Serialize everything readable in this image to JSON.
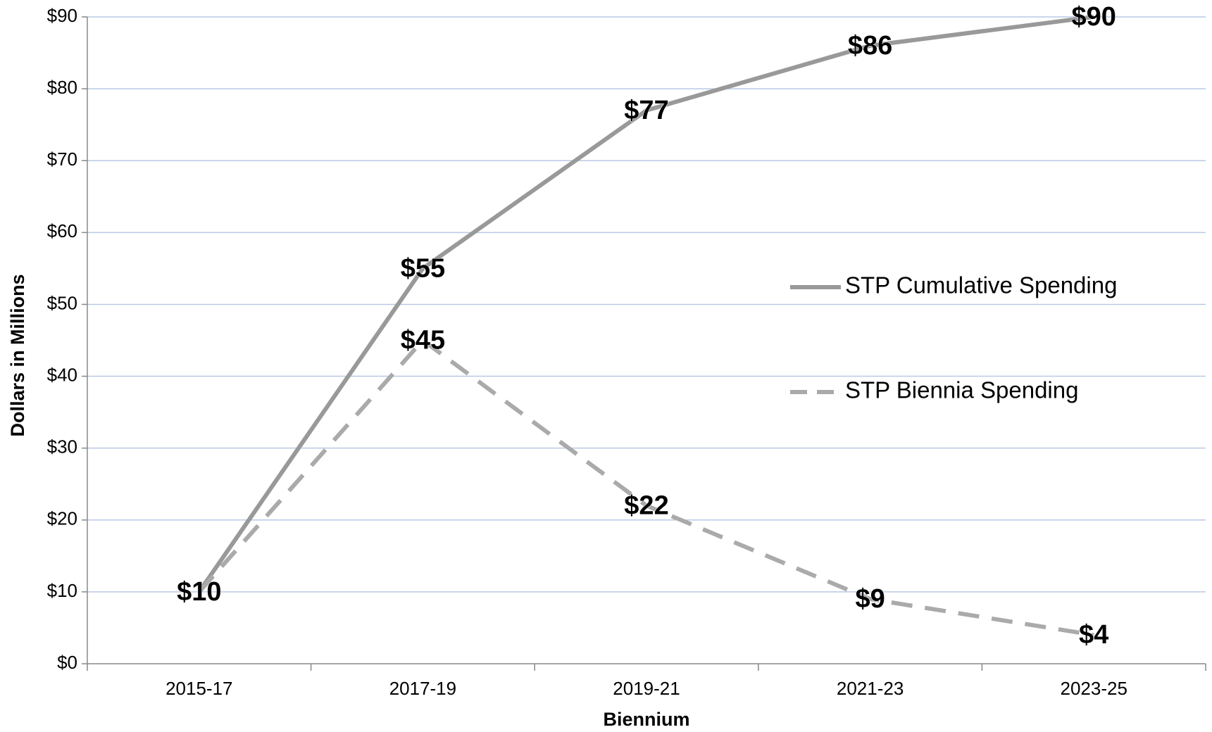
{
  "chart_data": {
    "type": "line",
    "x_label": "Biennium",
    "y_label": "Dollars in Millions",
    "categories": [
      "2015-17",
      "2017-19",
      "2019-21",
      "2021-23",
      "2023-25"
    ],
    "series": [
      {
        "name": "STP Cumulative Spending",
        "color": "#999999",
        "dash": false,
        "values": [
          10,
          55,
          77,
          86,
          90
        ],
        "value_labels": [
          "$10",
          "$55",
          "$77",
          "$86",
          "$90"
        ]
      },
      {
        "name": "STP Biennia Spending",
        "color": "#aaaaaa",
        "dash": true,
        "values": [
          10,
          45,
          22,
          9,
          4
        ],
        "value_labels": [
          null,
          "$45",
          "$22",
          "$9",
          "$4"
        ]
      }
    ],
    "ylim": [
      0,
      90
    ],
    "yticks": [
      {
        "value": 0,
        "label": "$0"
      },
      {
        "value": 10,
        "label": "$10"
      },
      {
        "value": 20,
        "label": "$20"
      },
      {
        "value": 30,
        "label": "$30"
      },
      {
        "value": 40,
        "label": "$40"
      },
      {
        "value": 50,
        "label": "$50"
      },
      {
        "value": 60,
        "label": "$60"
      },
      {
        "value": 70,
        "label": "$70"
      },
      {
        "value": 80,
        "label": "$80"
      },
      {
        "value": 90,
        "label": "$90"
      }
    ],
    "grid": true,
    "legend": "right"
  }
}
